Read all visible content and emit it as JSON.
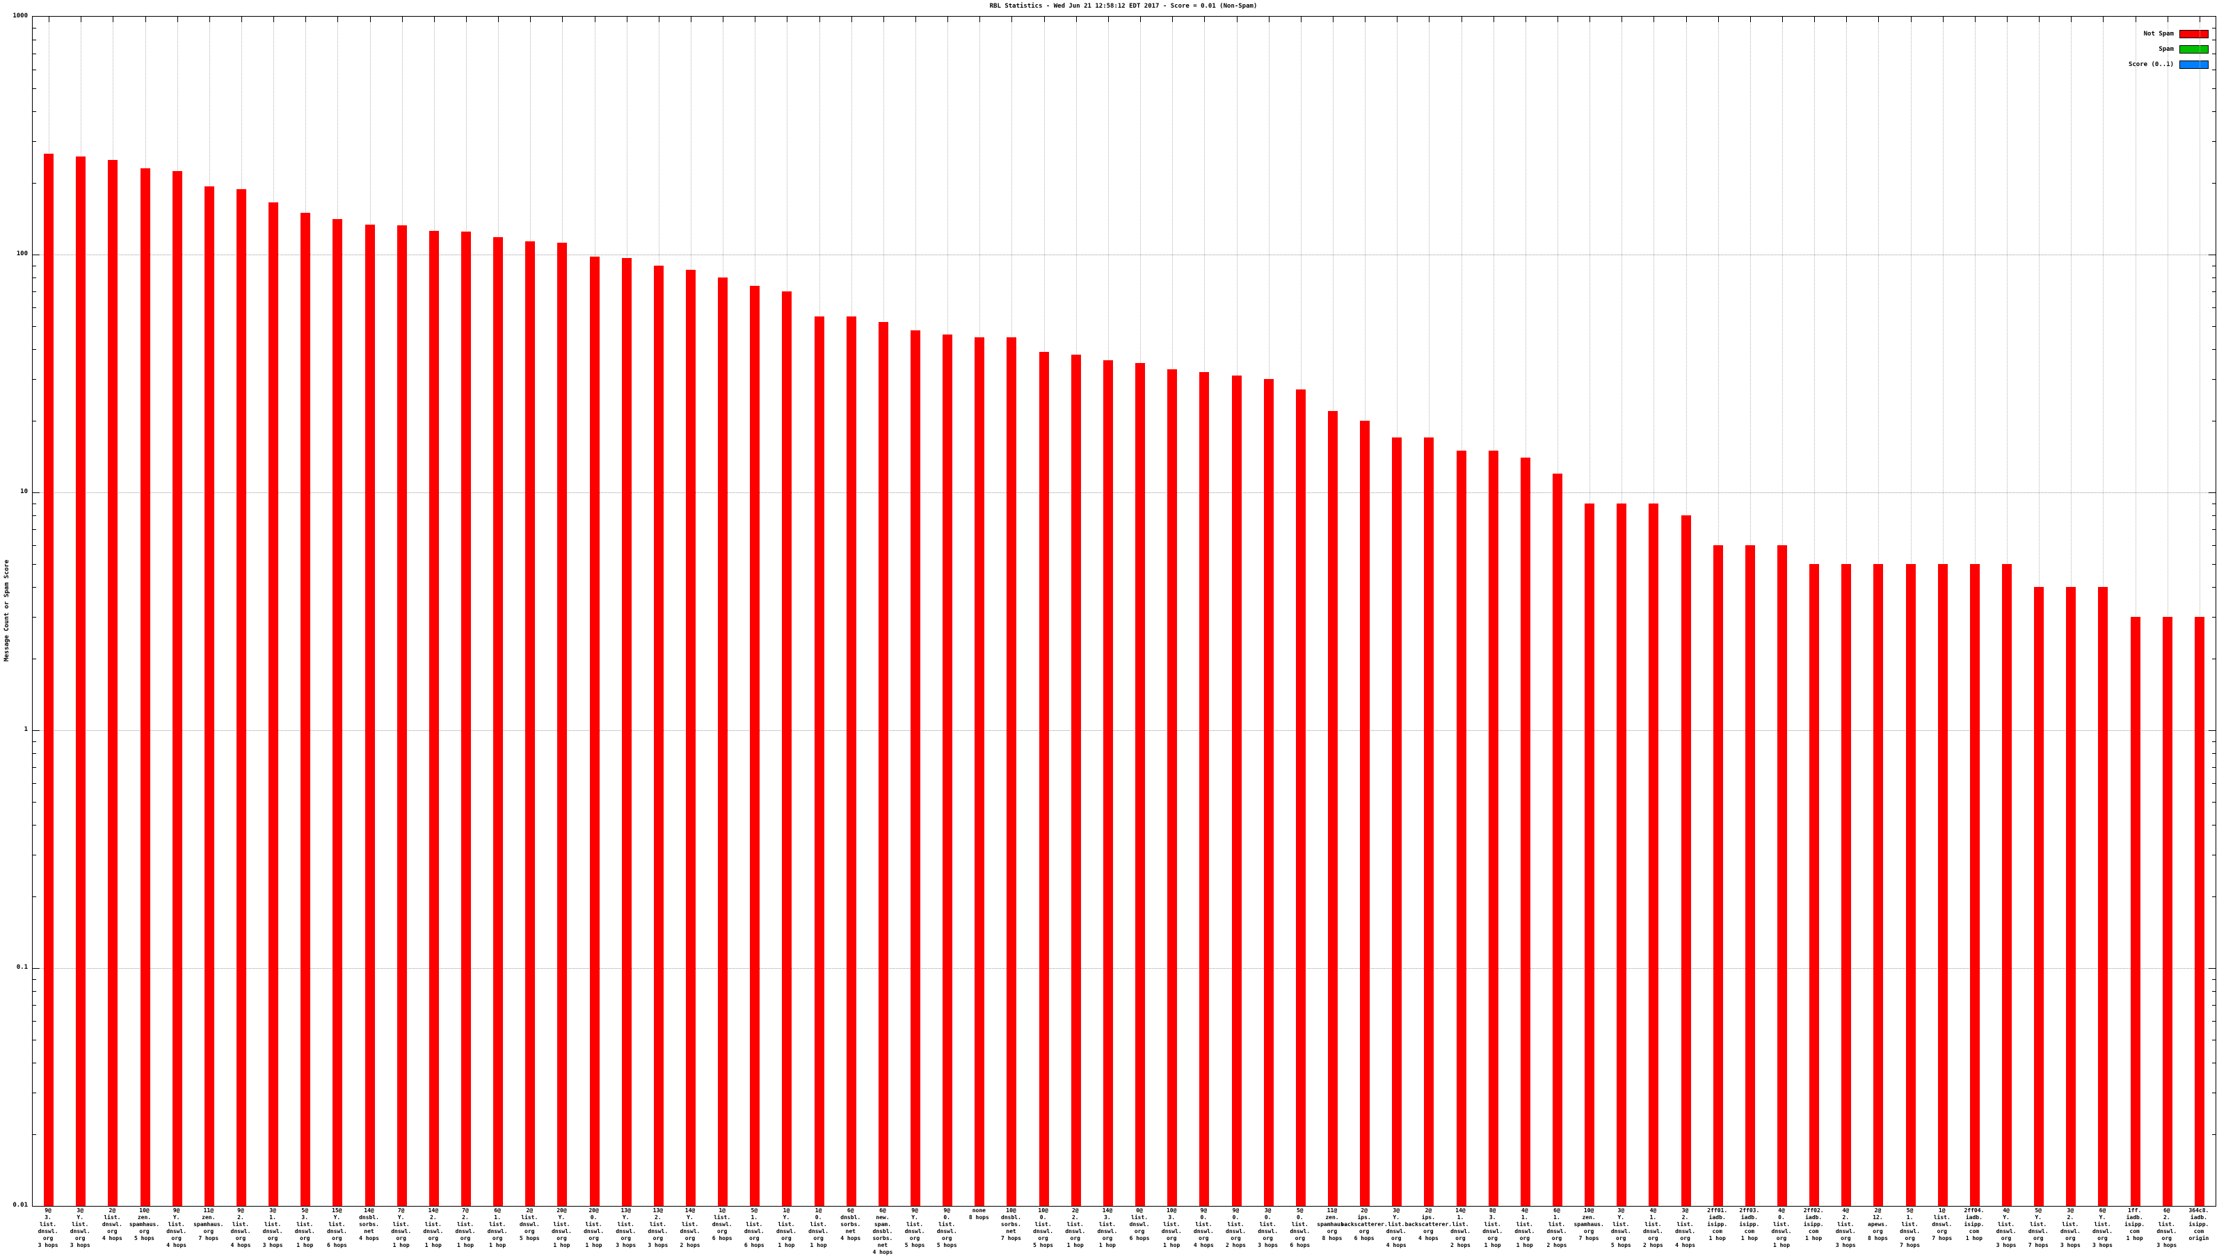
{
  "chart_data": {
    "type": "bar",
    "title": "RBL Statistics - Wed Jun 21 12:58:12 EDT 2017 - Score = 0.01 (Non-Spam)",
    "xlabel": "",
    "ylabel": "Message Count or Spam Score",
    "y_scale": "log",
    "ylim": [
      0.01,
      1000
    ],
    "y_ticks": [
      "1000",
      "100",
      "10",
      "1",
      "0.1",
      "0.01"
    ],
    "grid": true,
    "bar_color": "#ff0000",
    "legend_position": "top-right-inside",
    "legend": [
      {
        "label": "Not Spam",
        "color": "#ff0000"
      },
      {
        "label": "Spam",
        "color": "#00c000"
      },
      {
        "label": "Score (0..1)",
        "color": "#0080ff"
      }
    ],
    "categories": [
      [
        "9@",
        "3.",
        "list.",
        "dnswl.",
        "org",
        "3 hops"
      ],
      [
        "3@",
        "Y.",
        "list.",
        "dnswl.",
        "org",
        "3 hops"
      ],
      [
        "2@",
        "list.",
        "dnswl.",
        "org",
        "4 hops"
      ],
      [
        "10@",
        "zen.",
        "spamhaus.",
        "org",
        "5 hops"
      ],
      [
        "9@",
        "Y.",
        "list.",
        "dnswl.",
        "org",
        "4 hops"
      ],
      [
        "11@",
        "zen.",
        "spamhaus.",
        "org",
        "7 hops"
      ],
      [
        "9@",
        "2.",
        "list.",
        "dnswl.",
        "org",
        "4 hops"
      ],
      [
        "3@",
        "1.",
        "list.",
        "dnswl.",
        "org",
        "3 hops"
      ],
      [
        "5@",
        "3.",
        "list.",
        "dnswl.",
        "org",
        "1 hop"
      ],
      [
        "15@",
        "Y.",
        "list.",
        "dnswl.",
        "org",
        "6 hops"
      ],
      [
        "14@",
        "dnsbl.",
        "sorbs.",
        "net",
        "4 hops"
      ],
      [
        "7@",
        "Y.",
        "list.",
        "dnswl.",
        "org",
        "1 hop"
      ],
      [
        "14@",
        "2.",
        "list.",
        "dnswl.",
        "org",
        "1 hop"
      ],
      [
        "7@",
        "2.",
        "list.",
        "dnswl.",
        "org",
        "1 hop"
      ],
      [
        "6@",
        "1.",
        "list.",
        "dnswl.",
        "org",
        "1 hop"
      ],
      [
        "2@",
        "list.",
        "dnswl.",
        "org",
        "5 hops"
      ],
      [
        "20@",
        "Y.",
        "list.",
        "dnswl.",
        "org",
        "1 hop"
      ],
      [
        "20@",
        "0.",
        "list.",
        "dnswl.",
        "org",
        "1 hop"
      ],
      [
        "13@",
        "Y.",
        "list.",
        "dnswl.",
        "org",
        "3 hops"
      ],
      [
        "13@",
        "2.",
        "list.",
        "dnswl.",
        "org",
        "3 hops"
      ],
      [
        "14@",
        "Y.",
        "list.",
        "dnswl.",
        "org",
        "2 hops"
      ],
      [
        "1@",
        "list.",
        "dnswl.",
        "org",
        "6 hops"
      ],
      [
        "5@",
        "1.",
        "list.",
        "dnswl.",
        "org",
        "6 hops"
      ],
      [
        "1@",
        "Y.",
        "list.",
        "dnswl.",
        "org",
        "1 hop"
      ],
      [
        "1@",
        "0.",
        "list.",
        "dnswl.",
        "org",
        "1 hop"
      ],
      [
        "6@",
        "dnsbl.",
        "sorbs.",
        "net",
        "4 hops"
      ],
      [
        "6@",
        "new.",
        "spam.",
        "dnsbl.",
        "sorbs.",
        "net",
        "4 hops"
      ],
      [
        "9@",
        "Y.",
        "list.",
        "dnswl.",
        "org",
        "5 hops"
      ],
      [
        "9@",
        "0.",
        "list.",
        "dnswl.",
        "org",
        "5 hops"
      ],
      [
        "none",
        "8 hops"
      ],
      [
        "10@",
        "dnsbl.",
        "sorbs.",
        "net",
        "7 hops"
      ],
      [
        "10@",
        "0.",
        "list.",
        "dnswl.",
        "org",
        "5 hops"
      ],
      [
        "2@",
        "2.",
        "list.",
        "dnswl.",
        "org",
        "1 hop"
      ],
      [
        "14@",
        "3.",
        "list.",
        "dnswl.",
        "org",
        "1 hop"
      ],
      [
        "0@",
        "list.",
        "dnswl.",
        "org",
        "6 hops"
      ],
      [
        "10@",
        "3.",
        "list.",
        "dnswl.",
        "org",
        "1 hop"
      ],
      [
        "9@",
        "0.",
        "list.",
        "dnswl.",
        "org",
        "4 hops"
      ],
      [
        "9@",
        "0.",
        "list.",
        "dnswl.",
        "org",
        "2 hops"
      ],
      [
        "3@",
        "0.",
        "list.",
        "dnswl.",
        "org",
        "3 hops"
      ],
      [
        "5@",
        "0.",
        "list.",
        "dnswl.",
        "org",
        "6 hops"
      ],
      [
        "11@",
        "zen.",
        "spamhaus.",
        "org",
        "8 hops"
      ],
      [
        "2@",
        "ips.",
        "backscatterer.",
        "org",
        "6 hops"
      ],
      [
        "3@",
        "Y.",
        "list.",
        "dnswl.",
        "org",
        "4 hops"
      ],
      [
        "2@",
        "ips.",
        "backscatterer.",
        "org",
        "4 hops"
      ],
      [
        "14@",
        "1.",
        "list.",
        "dnswl.",
        "org",
        "2 hops"
      ],
      [
        "8@",
        "3.",
        "list.",
        "dnswl.",
        "org",
        "1 hop"
      ],
      [
        "4@",
        "1.",
        "list.",
        "dnswl.",
        "org",
        "1 hop"
      ],
      [
        "6@",
        "1.",
        "list.",
        "dnswl.",
        "org",
        "2 hops"
      ],
      [
        "10@",
        "zen.",
        "spamhaus.",
        "org",
        "7 hops"
      ],
      [
        "3@",
        "Y.",
        "list.",
        "dnswl.",
        "org",
        "5 hops"
      ],
      [
        "4@",
        "1.",
        "list.",
        "dnswl.",
        "org",
        "2 hops"
      ],
      [
        "3@",
        "2.",
        "list.",
        "dnswl.",
        "org",
        "4 hops"
      ],
      [
        "2ff01.",
        "iadb.",
        "isipp.",
        "com",
        "1 hop"
      ],
      [
        "2ff03.",
        "iadb.",
        "isipp.",
        "com",
        "1 hop"
      ],
      [
        "4@",
        "0.",
        "list.",
        "dnswl.",
        "org",
        "1 hop"
      ],
      [
        "2ff02.",
        "iadb.",
        "isipp.",
        "com",
        "1 hop"
      ],
      [
        "4@",
        "2.",
        "list.",
        "dnswl.",
        "org",
        "3 hops"
      ],
      [
        "2@",
        "12.",
        "apews.",
        "org",
        "8 hops"
      ],
      [
        "5@",
        "1.",
        "list.",
        "dnswl.",
        "org",
        "7 hops"
      ],
      [
        "1@",
        "list.",
        "dnswl.",
        "org",
        "7 hops"
      ],
      [
        "2ff04.",
        "iadb.",
        "isipp.",
        "com",
        "1 hop"
      ],
      [
        "4@",
        "Y.",
        "list.",
        "dnswl.",
        "org",
        "3 hops"
      ],
      [
        "5@",
        "Y.",
        "list.",
        "dnswl.",
        "org",
        "7 hops"
      ],
      [
        "3@",
        "2.",
        "list.",
        "dnswl.",
        "org",
        "3 hops"
      ],
      [
        "6@",
        "Y.",
        "list.",
        "dnswl.",
        "org",
        "3 hops"
      ],
      [
        "1ff.",
        "iadb.",
        "isipp.",
        "com",
        "1 hop"
      ],
      [
        "6@",
        "2.",
        "list.",
        "dnswl.",
        "org",
        "3 hops"
      ],
      [
        "364c8.",
        "iadb.",
        "isipp.",
        "com",
        "origin"
      ]
    ],
    "values": [
      266,
      258,
      250,
      231,
      225,
      193,
      188,
      166,
      150,
      141,
      134,
      133,
      126,
      125,
      118,
      114,
      112,
      98,
      97,
      90,
      86,
      80,
      74,
      70,
      55,
      55,
      52,
      48,
      46,
      45,
      45,
      39,
      38,
      36,
      35,
      33,
      32,
      31,
      30,
      27,
      22,
      20,
      17,
      17,
      15,
      15,
      14,
      12,
      9,
      9,
      9,
      8,
      6,
      6,
      6,
      5,
      5,
      5,
      5,
      5,
      5,
      5,
      4,
      4,
      4,
      3,
      3,
      3
    ]
  }
}
